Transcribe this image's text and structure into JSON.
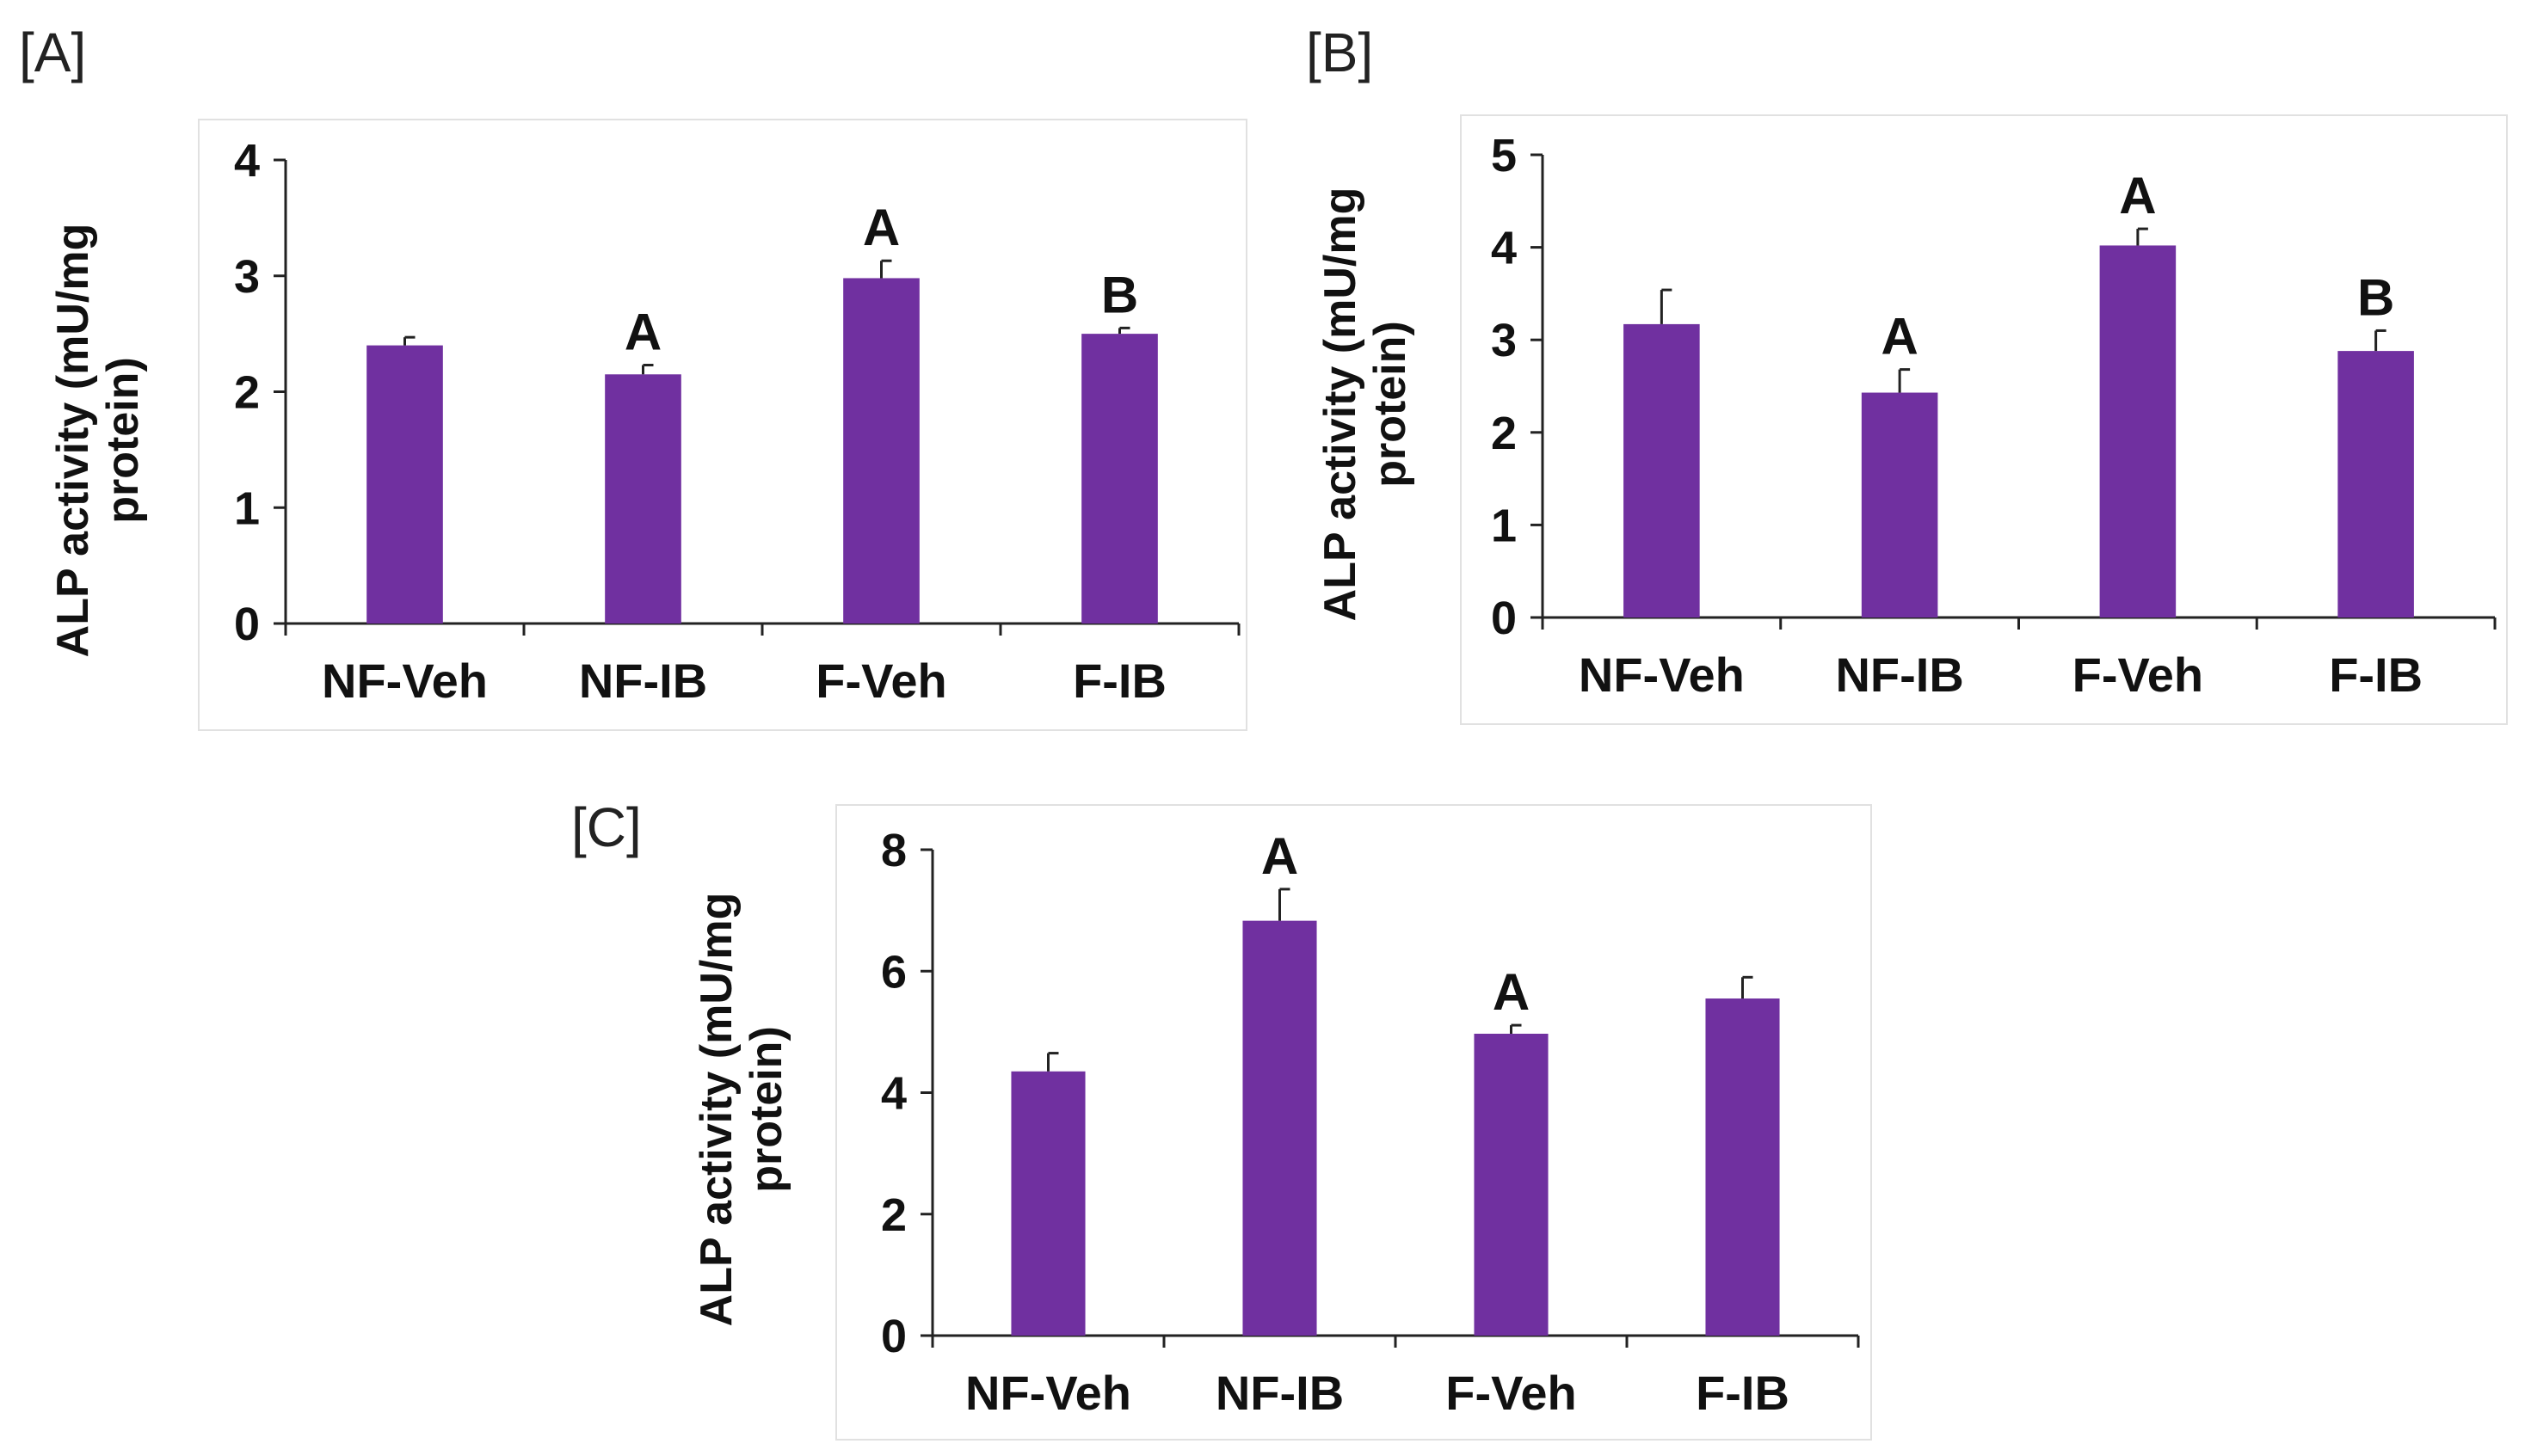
{
  "bar_color": "#7030A0",
  "axis_color": "#222222",
  "panels": [
    {
      "letter": "[A]",
      "ylabel_line1": "ALP activity (mU/mg",
      "ylabel_line2": "protein)"
    },
    {
      "letter": "[B]",
      "ylabel_line1": "ALP activity (mU/mg",
      "ylabel_line2": "protein)"
    },
    {
      "letter": "[C]",
      "ylabel_line1": "ALP activity (mU/mg",
      "ylabel_line2": "protein)"
    }
  ],
  "chart_data": [
    {
      "type": "bar",
      "title": "[A]",
      "ylabel": "ALP activity (mU/mg protein)",
      "xlabel": "",
      "categories": [
        "NF-Veh",
        "NF-IB",
        "F-Veh",
        "F-IB"
      ],
      "values": [
        2.4,
        2.15,
        2.98,
        2.5
      ],
      "errors": [
        0.07,
        0.08,
        0.15,
        0.05
      ],
      "significance": [
        "",
        "A",
        "A",
        "B"
      ],
      "ylim": [
        0,
        4
      ],
      "yticks": [
        "0",
        "1",
        "2",
        "3",
        "4"
      ]
    },
    {
      "type": "bar",
      "title": "[B]",
      "ylabel": "ALP activity (mU/mg protein)",
      "xlabel": "",
      "categories": [
        "NF-Veh",
        "NF-IB",
        "F-Veh",
        "F-IB"
      ],
      "values": [
        3.17,
        2.43,
        4.02,
        2.88
      ],
      "errors": [
        0.37,
        0.25,
        0.18,
        0.22
      ],
      "significance": [
        "",
        "A",
        "A",
        "B"
      ],
      "ylim": [
        0,
        5
      ],
      "yticks": [
        "0",
        "1",
        "2",
        "3",
        "4",
        "5"
      ]
    },
    {
      "type": "bar",
      "title": "[C]",
      "ylabel": "ALP activity (mU/mg protein)",
      "xlabel": "",
      "categories": [
        "NF-Veh",
        "NF-IB",
        "F-Veh",
        "F-IB"
      ],
      "values": [
        4.35,
        6.83,
        4.97,
        5.55
      ],
      "errors": [
        0.3,
        0.52,
        0.14,
        0.35
      ],
      "significance": [
        "",
        "A",
        "A",
        ""
      ],
      "ylim": [
        0,
        8
      ],
      "yticks": [
        "0",
        "2",
        "4",
        "6",
        "8"
      ]
    }
  ]
}
